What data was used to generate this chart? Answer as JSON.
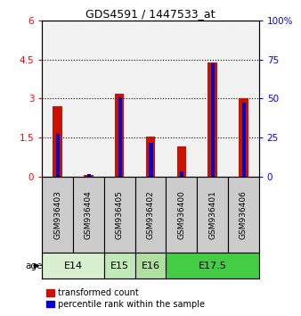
{
  "title": "GDS4591 / 1447533_at",
  "samples": [
    "GSM936403",
    "GSM936404",
    "GSM936405",
    "GSM936402",
    "GSM936400",
    "GSM936401",
    "GSM936406"
  ],
  "transformed_count": [
    2.7,
    0.05,
    3.2,
    1.55,
    1.15,
    4.4,
    3.0
  ],
  "percentile_rank_left": [
    1.65,
    0.08,
    3.05,
    1.28,
    0.2,
    4.35,
    2.85
  ],
  "age_groups": [
    {
      "label": "E14",
      "start": 0,
      "end": 2,
      "color": "#d8f0d0"
    },
    {
      "label": "E15",
      "start": 2,
      "end": 3,
      "color": "#c0e8b8"
    },
    {
      "label": "E16",
      "start": 3,
      "end": 4,
      "color": "#b0e0a0"
    },
    {
      "label": "E17.5",
      "start": 4,
      "end": 7,
      "color": "#44cc44"
    }
  ],
  "ylim_left": [
    0,
    6
  ],
  "ylim_right": [
    0,
    100
  ],
  "yticks_left": [
    0,
    1.5,
    3.0,
    4.5,
    6.0
  ],
  "ytick_labels_left": [
    "0",
    "1.5",
    "3",
    "4.5",
    "6"
  ],
  "yticks_right": [
    0,
    25,
    50,
    75,
    100
  ],
  "ytick_labels_right": [
    "0",
    "25",
    "50",
    "75",
    "100%"
  ],
  "bar_color_red": "#cc1100",
  "bar_color_blue": "#0000cc",
  "red_bar_width": 0.3,
  "blue_bar_width": 0.12,
  "sample_bg": "#cccccc",
  "age_label": "age"
}
